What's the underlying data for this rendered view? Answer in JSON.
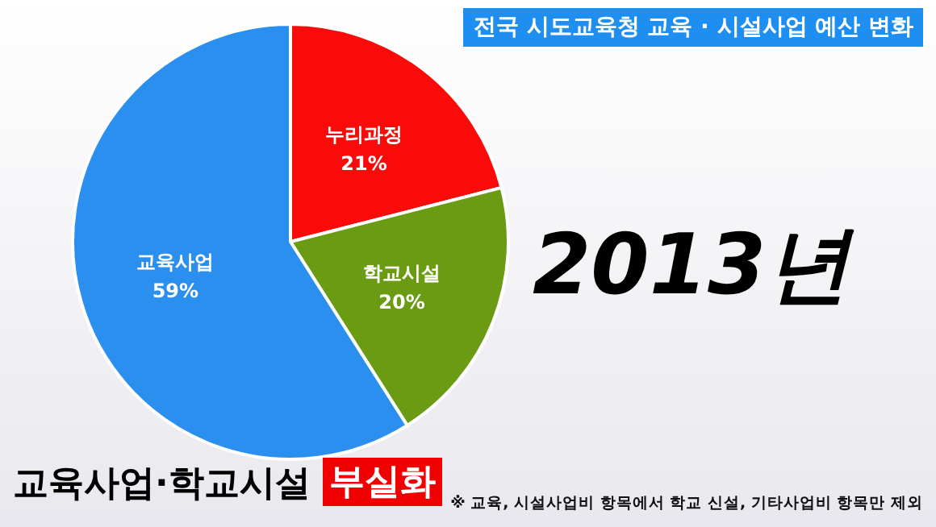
{
  "chart_data": {
    "type": "pie",
    "title": "전국 시도교육청 교육 · 시설사업 예산 변화",
    "categories": [
      "누리과정",
      "학교시설",
      "교육사업"
    ],
    "values": [
      21,
      20,
      59
    ],
    "value_labels": [
      "21%",
      "20%",
      "59%"
    ],
    "colors": [
      "#fb0a0a",
      "#6b9b12",
      "#2b8ff0"
    ],
    "legend": false,
    "annotations": [
      "2013년",
      "교육사업·학교시설",
      "부실화",
      "※ 교육, 시설사업비 항목에서 학교 신설, 기타사업비 항목만 제외"
    ]
  }
}
